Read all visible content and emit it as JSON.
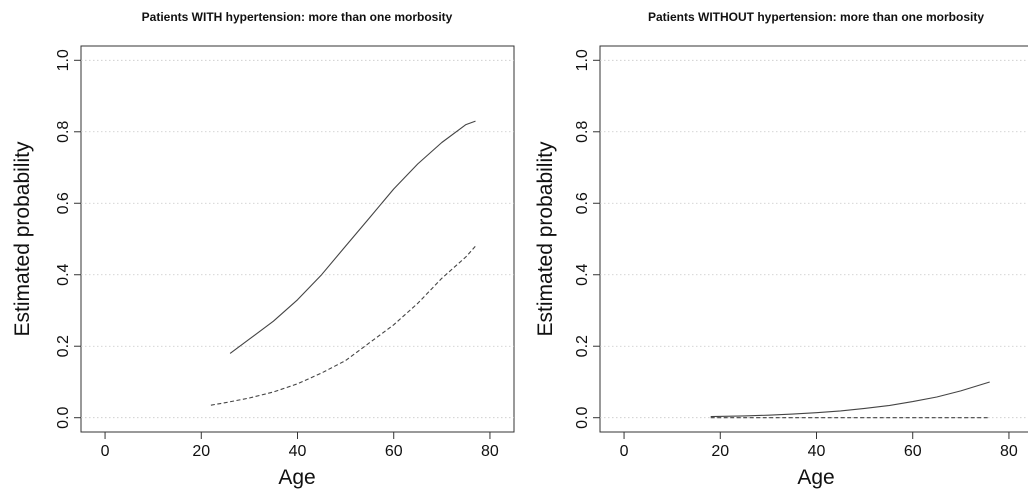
{
  "chart_data": [
    {
      "type": "line",
      "title": "Patients WITH hypertension: more than one morbosity",
      "xlabel": "Age",
      "ylabel": "Estimated probability",
      "xlim": [
        -5,
        85
      ],
      "ylim": [
        -0.04,
        1.04
      ],
      "xticks": [
        "0",
        "20",
        "40",
        "60",
        "80"
      ],
      "yticks": [
        "0.0",
        "0.2",
        "0.4",
        "0.6",
        "0.8",
        "1.0"
      ],
      "grid": "horizontal dotted",
      "series": [
        {
          "style": "solid",
          "x": [
            26,
            30,
            35,
            40,
            45,
            50,
            55,
            60,
            65,
            70,
            75,
            77
          ],
          "y": [
            0.18,
            0.22,
            0.27,
            0.33,
            0.4,
            0.48,
            0.56,
            0.64,
            0.71,
            0.77,
            0.82,
            0.83
          ]
        },
        {
          "style": "dashed",
          "x": [
            22,
            25,
            30,
            35,
            40,
            45,
            50,
            55,
            60,
            65,
            70,
            75,
            77
          ],
          "y": [
            0.035,
            0.042,
            0.055,
            0.072,
            0.095,
            0.125,
            0.16,
            0.21,
            0.26,
            0.32,
            0.39,
            0.45,
            0.48
          ]
        }
      ]
    },
    {
      "type": "line",
      "title": "Patients WITHOUT hypertension: more than one morbosity",
      "xlabel": "Age",
      "ylabel": "Estimated probability",
      "xlim": [
        -5,
        85
      ],
      "ylim": [
        -0.04,
        1.04
      ],
      "xticks": [
        "0",
        "20",
        "40",
        "60",
        "80"
      ],
      "yticks": [
        "0.0",
        "0.2",
        "0.4",
        "0.6",
        "0.8",
        "1.0"
      ],
      "grid": "horizontal dotted",
      "series": [
        {
          "style": "solid",
          "x": [
            18,
            25,
            30,
            35,
            40,
            45,
            50,
            55,
            60,
            65,
            70,
            76
          ],
          "y": [
            0.003,
            0.005,
            0.007,
            0.01,
            0.014,
            0.019,
            0.026,
            0.034,
            0.045,
            0.058,
            0.075,
            0.1
          ]
        },
        {
          "style": "dashed",
          "x": [
            18,
            30,
            40,
            50,
            60,
            70,
            76
          ],
          "y": [
            0.0,
            0.0,
            0.0,
            0.0,
            0.0,
            0.0,
            0.0
          ]
        }
      ]
    }
  ]
}
